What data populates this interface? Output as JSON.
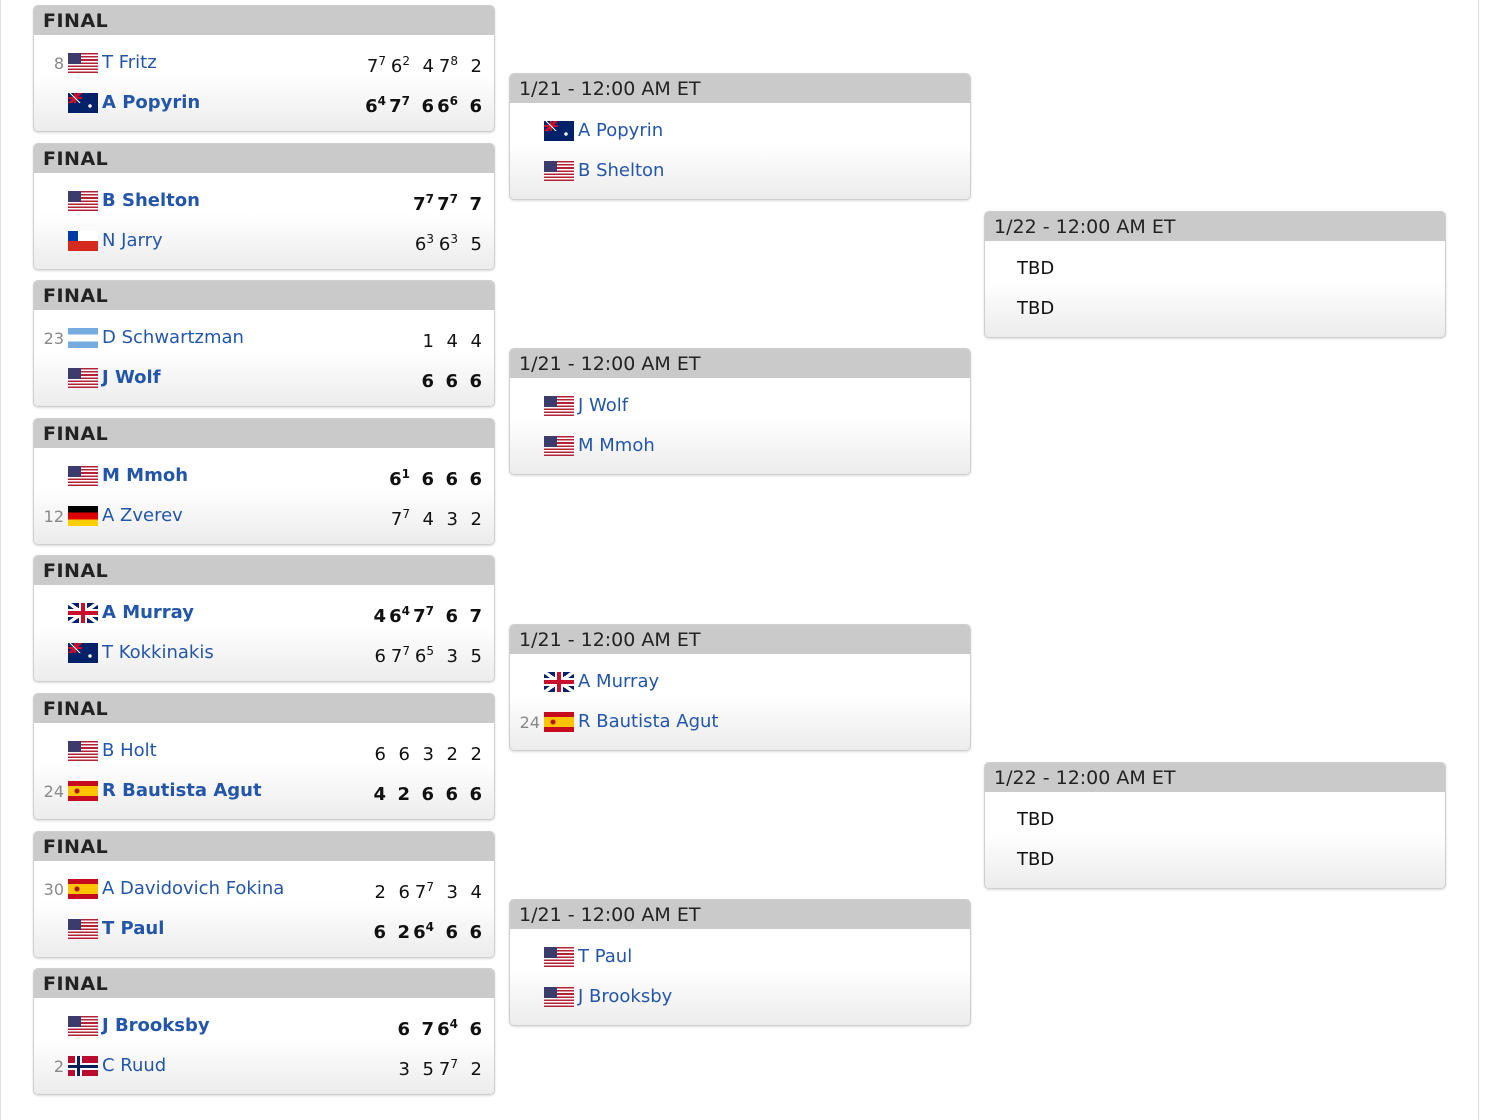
{
  "round1": [
    {
      "header": "FINAL",
      "players": [
        {
          "seed": "8",
          "flag": "us",
          "name": "T Fritz",
          "winner": false,
          "sets": [
            [
              "7",
              "7"
            ],
            [
              "6",
              "2"
            ],
            [
              "4",
              ""
            ],
            [
              "7",
              "8"
            ],
            [
              "2",
              ""
            ]
          ]
        },
        {
          "seed": "",
          "flag": "au",
          "name": "A Popyrin",
          "winner": true,
          "sets": [
            [
              "6",
              "4"
            ],
            [
              "7",
              "7"
            ],
            [
              "6",
              ""
            ],
            [
              "6",
              "6"
            ],
            [
              "6",
              ""
            ]
          ]
        }
      ]
    },
    {
      "header": "FINAL",
      "players": [
        {
          "seed": "",
          "flag": "us",
          "name": "B Shelton",
          "winner": true,
          "sets": [
            [
              "7",
              "7"
            ],
            [
              "7",
              "7"
            ],
            [
              "7",
              ""
            ]
          ]
        },
        {
          "seed": "",
          "flag": "cl",
          "name": "N Jarry",
          "winner": false,
          "sets": [
            [
              "6",
              "3"
            ],
            [
              "6",
              "3"
            ],
            [
              "5",
              ""
            ]
          ]
        }
      ]
    },
    {
      "header": "FINAL",
      "players": [
        {
          "seed": "23",
          "flag": "ar",
          "name": "D Schwartzman",
          "winner": false,
          "sets": [
            [
              "1",
              ""
            ],
            [
              "4",
              ""
            ],
            [
              "4",
              ""
            ]
          ]
        },
        {
          "seed": "",
          "flag": "us",
          "name": "J Wolf",
          "winner": true,
          "sets": [
            [
              "6",
              ""
            ],
            [
              "6",
              ""
            ],
            [
              "6",
              ""
            ]
          ]
        }
      ]
    },
    {
      "header": "FINAL",
      "players": [
        {
          "seed": "",
          "flag": "us",
          "name": "M Mmoh",
          "winner": true,
          "sets": [
            [
              "6",
              "1"
            ],
            [
              "6",
              ""
            ],
            [
              "6",
              ""
            ],
            [
              "6",
              ""
            ]
          ]
        },
        {
          "seed": "12",
          "flag": "de",
          "name": "A Zverev",
          "winner": false,
          "sets": [
            [
              "7",
              "7"
            ],
            [
              "4",
              ""
            ],
            [
              "3",
              ""
            ],
            [
              "2",
              ""
            ]
          ]
        }
      ]
    },
    {
      "header": "FINAL",
      "players": [
        {
          "seed": "",
          "flag": "gb",
          "name": "A Murray",
          "winner": true,
          "sets": [
            [
              "4",
              ""
            ],
            [
              "6",
              "4"
            ],
            [
              "7",
              "7"
            ],
            [
              "6",
              ""
            ],
            [
              "7",
              ""
            ]
          ]
        },
        {
          "seed": "",
          "flag": "au",
          "name": "T Kokkinakis",
          "winner": false,
          "sets": [
            [
              "6",
              ""
            ],
            [
              "7",
              "7"
            ],
            [
              "6",
              "5"
            ],
            [
              "3",
              ""
            ],
            [
              "5",
              ""
            ]
          ]
        }
      ]
    },
    {
      "header": "FINAL",
      "players": [
        {
          "seed": "",
          "flag": "us",
          "name": "B Holt",
          "winner": false,
          "sets": [
            [
              "6",
              ""
            ],
            [
              "6",
              ""
            ],
            [
              "3",
              ""
            ],
            [
              "2",
              ""
            ],
            [
              "2",
              ""
            ]
          ]
        },
        {
          "seed": "24",
          "flag": "es",
          "name": "R Bautista Agut",
          "winner": true,
          "sets": [
            [
              "4",
              ""
            ],
            [
              "2",
              ""
            ],
            [
              "6",
              ""
            ],
            [
              "6",
              ""
            ],
            [
              "6",
              ""
            ]
          ]
        }
      ]
    },
    {
      "header": "FINAL",
      "players": [
        {
          "seed": "30",
          "flag": "es",
          "name": "A Davidovich Fokina",
          "winner": false,
          "sets": [
            [
              "2",
              ""
            ],
            [
              "6",
              ""
            ],
            [
              "7",
              "7"
            ],
            [
              "3",
              ""
            ],
            [
              "4",
              ""
            ]
          ]
        },
        {
          "seed": "",
          "flag": "us",
          "name": "T Paul",
          "winner": true,
          "sets": [
            [
              "6",
              ""
            ],
            [
              "2",
              ""
            ],
            [
              "6",
              "4"
            ],
            [
              "6",
              ""
            ],
            [
              "6",
              ""
            ]
          ]
        }
      ]
    },
    {
      "header": "FINAL",
      "players": [
        {
          "seed": "",
          "flag": "us",
          "name": "J Brooksby",
          "winner": true,
          "sets": [
            [
              "6",
              ""
            ],
            [
              "7",
              ""
            ],
            [
              "6",
              "4"
            ],
            [
              "6",
              ""
            ]
          ]
        },
        {
          "seed": "2",
          "flag": "no",
          "name": "C Ruud",
          "winner": false,
          "sets": [
            [
              "3",
              ""
            ],
            [
              "5",
              ""
            ],
            [
              "7",
              "7"
            ],
            [
              "2",
              ""
            ]
          ]
        }
      ]
    }
  ],
  "round2": [
    {
      "header": "1/21 - 12:00 AM ET",
      "players": [
        {
          "seed": "",
          "flag": "au",
          "name": "A Popyrin"
        },
        {
          "seed": "",
          "flag": "us",
          "name": "B Shelton"
        }
      ]
    },
    {
      "header": "1/21 - 12:00 AM ET",
      "players": [
        {
          "seed": "",
          "flag": "us",
          "name": "J Wolf"
        },
        {
          "seed": "",
          "flag": "us",
          "name": "M Mmoh"
        }
      ]
    },
    {
      "header": "1/21 - 12:00 AM ET",
      "players": [
        {
          "seed": "",
          "flag": "gb",
          "name": "A Murray"
        },
        {
          "seed": "24",
          "flag": "es",
          "name": "R Bautista Agut"
        }
      ]
    },
    {
      "header": "1/21 - 12:00 AM ET",
      "players": [
        {
          "seed": "",
          "flag": "us",
          "name": "T Paul"
        },
        {
          "seed": "",
          "flag": "us",
          "name": "J Brooksby"
        }
      ]
    }
  ],
  "round3": [
    {
      "header": "1/22 - 12:00 AM ET",
      "players": [
        {
          "name": "TBD",
          "tbd": true
        },
        {
          "name": "TBD",
          "tbd": true
        }
      ]
    },
    {
      "header": "1/22 - 12:00 AM ET",
      "players": [
        {
          "name": "TBD",
          "tbd": true
        },
        {
          "name": "TBD",
          "tbd": true
        }
      ]
    }
  ]
}
